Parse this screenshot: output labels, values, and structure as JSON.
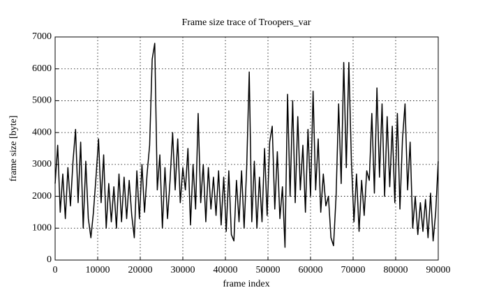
{
  "chart_data": {
    "type": "line",
    "title": "Frame size trace of Troopers_var",
    "xlabel": "frame index",
    "ylabel": "frame size [byte]",
    "x": [
      0,
      600,
      1200,
      1800,
      2400,
      3000,
      3600,
      4200,
      4800,
      5400,
      6000,
      6600,
      7200,
      7800,
      8400,
      9000,
      9600,
      10200,
      10800,
      11400,
      12000,
      12600,
      13200,
      13800,
      14400,
      15000,
      15600,
      16200,
      16800,
      17400,
      18000,
      18600,
      19200,
      19800,
      20400,
      21000,
      21600,
      22200,
      22800,
      23400,
      24000,
      24600,
      25200,
      25800,
      26400,
      27000,
      27600,
      28200,
      28800,
      29400,
      30000,
      30600,
      31200,
      31800,
      32400,
      33000,
      33600,
      34200,
      34800,
      35400,
      36000,
      36600,
      37200,
      37800,
      38400,
      39000,
      39600,
      40200,
      40800,
      41400,
      42000,
      42600,
      43200,
      43800,
      44400,
      45000,
      45600,
      46200,
      46800,
      47400,
      48000,
      48600,
      49200,
      49800,
      50400,
      51000,
      51600,
      52200,
      52800,
      53400,
      54000,
      54600,
      55200,
      55800,
      56400,
      57000,
      57600,
      58200,
      58800,
      59400,
      60000,
      60600,
      61200,
      61800,
      62400,
      63000,
      63600,
      64200,
      64800,
      65400,
      66000,
      66600,
      67200,
      67800,
      68400,
      69000,
      69600,
      70200,
      70800,
      71400,
      72000,
      72600,
      73200,
      73800,
      74400,
      75000,
      75600,
      76200,
      76800,
      77400,
      78000,
      78600,
      79200,
      79800,
      80400,
      81000,
      81600,
      82200,
      82800,
      83400,
      84000,
      84600,
      85200,
      85800,
      86400,
      87000,
      87600,
      88200,
      88800,
      89400,
      90000
    ],
    "series": [
      {
        "color": "#000000",
        "values": [
          2400,
          3600,
          1500,
          2700,
          1300,
          2900,
          1700,
          3100,
          4100,
          1800,
          3700,
          1000,
          3100,
          1300,
          700,
          1500,
          2600,
          3800,
          1800,
          3300,
          1000,
          2400,
          1200,
          2300,
          1000,
          2700,
          1200,
          2600,
          1300,
          2500,
          1400,
          700,
          2800,
          1300,
          3000,
          1500,
          2700,
          3600,
          6300,
          6800,
          2200,
          3300,
          1000,
          2900,
          1300,
          2500,
          4000,
          2200,
          3800,
          1800,
          2900,
          2200,
          3500,
          1100,
          3000,
          1600,
          4600,
          1800,
          3000,
          1200,
          2900,
          1600,
          2600,
          1400,
          2800,
          1100,
          2600,
          900,
          2800,
          800,
          600,
          2500,
          1200,
          2800,
          1000,
          2900,
          5900,
          1200,
          3100,
          1000,
          2600,
          1200,
          3500,
          1400,
          3700,
          4200,
          1600,
          3400,
          1300,
          2300,
          400,
          5200,
          2000,
          5000,
          1800,
          4500,
          2200,
          3600,
          1500,
          4100,
          2000,
          5300,
          2200,
          3800,
          1500,
          2700,
          1700,
          2000,
          700,
          450,
          2000,
          4900,
          2400,
          6200,
          2900,
          6200,
          3100,
          1200,
          2700,
          900,
          2500,
          1400,
          2800,
          2500,
          4600,
          2100,
          5400,
          2600,
          4900,
          2000,
          4500,
          2300,
          4200,
          1800,
          4600,
          1600,
          3800,
          4900,
          2200,
          3700,
          1000,
          2000,
          800,
          1800,
          900,
          1900,
          700,
          2100,
          600,
          1500,
          3100
        ]
      }
    ],
    "xlim": [
      0,
      90000
    ],
    "ylim": [
      0,
      7000
    ],
    "xticks": [
      0,
      10000,
      20000,
      30000,
      40000,
      50000,
      60000,
      70000,
      80000,
      90000
    ],
    "yticks": [
      0,
      1000,
      2000,
      3000,
      4000,
      5000,
      6000,
      7000
    ],
    "grid": true
  }
}
